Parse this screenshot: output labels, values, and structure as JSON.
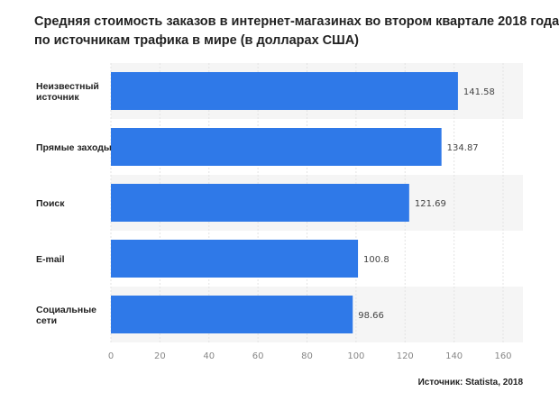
{
  "chart_data": {
    "type": "bar",
    "orientation": "horizontal",
    "title_lines": [
      "Средняя стоимость заказов в интернет-магазинах во втором квартале 2018 года",
      "по источникам трафика в мире (в долларах США)"
    ],
    "categories": [
      [
        "Неизвестный",
        "источник"
      ],
      [
        "Прямые заходы"
      ],
      [
        "Поиск"
      ],
      [
        "E-mail"
      ],
      [
        "Социальные",
        "сети"
      ]
    ],
    "values": [
      141.58,
      134.87,
      121.69,
      100.8,
      98.66
    ],
    "value_labels": [
      "141.58",
      "134.87",
      "121.69",
      "100.8",
      "98.66"
    ],
    "xlim": [
      0,
      160
    ],
    "xticks": [
      0,
      20,
      40,
      60,
      80,
      100,
      120,
      140,
      160
    ],
    "bar_color": "#2f79e8",
    "xlabel": "",
    "ylabel": ""
  },
  "source_text": "Источник: Statista, 2018"
}
